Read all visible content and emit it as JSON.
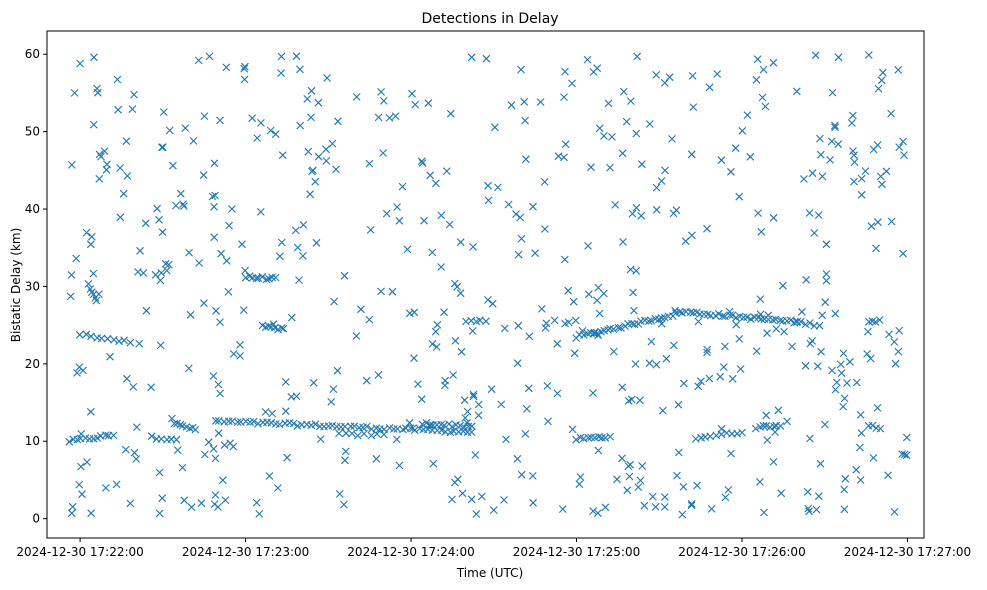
{
  "chart_data": {
    "type": "scatter",
    "title": "Detections in Delay",
    "xlabel": "Time (UTC)",
    "ylabel": "Bistatic Delay (km)",
    "marker": "x",
    "color": "#1f77b4",
    "grid": false,
    "x_axis_type": "datetime",
    "xlim": [
      "2024-12-30 17:21:48",
      "2024-12-30 17:27:06"
    ],
    "ylim": [
      -2.5,
      63
    ],
    "x_ticks": [
      "2024-12-30 17:22:00",
      "2024-12-30 17:23:00",
      "2024-12-30 17:24:00",
      "2024-12-30 17:25:00",
      "2024-12-30 17:26:00",
      "2024-12-30 17:27:00"
    ],
    "y_ticks": [
      0,
      10,
      20,
      30,
      40,
      50,
      60
    ],
    "tracks": [
      {
        "x_start": "2024-12-30 17:21:56",
        "x_end": "2024-12-30 17:22:12",
        "y_start": 10,
        "y_end": 10.8,
        "count": 12
      },
      {
        "x_start": "2024-12-30 17:22:00",
        "x_end": "2024-12-30 17:22:18",
        "y_start": 23.8,
        "y_end": 22.8,
        "count": 10
      },
      {
        "x_start": "2024-12-30 17:22:03",
        "x_end": "2024-12-30 17:22:06",
        "y_start": 30.2,
        "y_end": 28.2,
        "count": 6
      },
      {
        "x_start": "2024-12-30 17:22:26",
        "x_end": "2024-12-30 17:22:35",
        "y_start": 10.5,
        "y_end": 10.3,
        "count": 6
      },
      {
        "x_start": "2024-12-30 17:22:34",
        "x_end": "2024-12-30 17:22:42",
        "y_start": 12.3,
        "y_end": 11.5,
        "count": 8
      },
      {
        "x_start": "2024-12-30 17:22:49",
        "x_end": "2024-12-30 17:24:22",
        "y_start": 12.6,
        "y_end": 11.2,
        "count": 60
      },
      {
        "x_start": "2024-12-30 17:23:00",
        "x_end": "2024-12-30 17:23:11",
        "y_start": 31.2,
        "y_end": 31.0,
        "count": 10
      },
      {
        "x_start": "2024-12-30 17:23:06",
        "x_end": "2024-12-30 17:23:14",
        "y_start": 24.8,
        "y_end": 24.5,
        "count": 8
      },
      {
        "x_start": "2024-12-30 17:23:34",
        "x_end": "2024-12-30 17:23:50",
        "y_start": 10.9,
        "y_end": 10.8,
        "count": 8
      },
      {
        "x_start": "2024-12-30 17:24:04",
        "x_end": "2024-12-30 17:24:22",
        "y_start": 12.3,
        "y_end": 11.9,
        "count": 14
      },
      {
        "x_start": "2024-12-30 17:24:20",
        "x_end": "2024-12-30 17:24:27",
        "y_start": 25.6,
        "y_end": 25.4,
        "count": 5
      },
      {
        "x_start": "2024-12-30 17:25:00",
        "x_end": "2024-12-30 17:25:12",
        "y_start": 10.3,
        "y_end": 10.6,
        "count": 10
      },
      {
        "x_start": "2024-12-30 17:25:00",
        "x_end": "2024-12-30 17:25:36",
        "y_start": 23.5,
        "y_end": 26.4,
        "count": 30
      },
      {
        "x_start": "2024-12-30 17:25:36",
        "x_end": "2024-12-30 17:26:20",
        "y_start": 26.8,
        "y_end": 25.4,
        "count": 35
      },
      {
        "x_start": "2024-12-30 17:26:20",
        "x_end": "2024-12-30 17:26:28",
        "y_start": 25.4,
        "y_end": 25.0,
        "count": 6
      },
      {
        "x_start": "2024-12-30 17:25:43",
        "x_end": "2024-12-30 17:26:00",
        "y_start": 10.4,
        "y_end": 11.2,
        "count": 10
      },
      {
        "x_start": "2024-12-30 17:26:05",
        "x_end": "2024-12-30 17:26:14",
        "y_start": 11.8,
        "y_end": 12.1,
        "count": 8
      },
      {
        "x_start": "2024-12-30 17:26:46",
        "x_end": "2024-12-30 17:26:50",
        "y_start": 12.0,
        "y_end": 11.8,
        "count": 4
      },
      {
        "x_start": "2024-12-30 17:26:46",
        "x_end": "2024-12-30 17:26:50",
        "y_start": 25.6,
        "y_end": 25.5,
        "count": 4
      },
      {
        "x_start": "2024-12-30 17:26:58",
        "x_end": "2024-12-30 17:27:00",
        "y_start": 8.2,
        "y_end": 8.1,
        "count": 3
      }
    ],
    "clutter": {
      "x_range": [
        "2024-12-30 17:21:56",
        "2024-12-30 17:27:00"
      ],
      "y_range": [
        0.5,
        60
      ],
      "count": 560
    },
    "points": [
      {
        "x": "2024-12-30 17:21:57",
        "y": 0.7
      },
      {
        "x": "2024-12-30 17:22:04",
        "y": 0.7
      },
      {
        "x": "2024-12-30 17:22:05",
        "y": 59.6
      },
      {
        "x": "2024-12-30 17:22:00",
        "y": 58.8
      },
      {
        "x": "2024-12-30 17:21:57",
        "y": 45.7
      },
      {
        "x": "2024-12-30 17:21:58",
        "y": 55.0
      },
      {
        "x": "2024-12-30 17:22:43",
        "y": 59.2
      },
      {
        "x": "2024-12-30 17:22:53",
        "y": 58.3
      },
      {
        "x": "2024-12-30 17:23:13",
        "y": 59.7
      },
      {
        "x": "2024-12-30 17:22:44",
        "y": 2.0
      },
      {
        "x": "2024-12-30 17:22:50",
        "y": 1.5
      },
      {
        "x": "2024-12-30 17:24:22",
        "y": 59.6
      },
      {
        "x": "2024-12-30 17:24:22",
        "y": 2.5
      },
      {
        "x": "2024-12-30 17:24:30",
        "y": 1.1
      },
      {
        "x": "2024-12-30 17:25:04",
        "y": 59.3
      },
      {
        "x": "2024-12-30 17:25:22",
        "y": 59.7
      },
      {
        "x": "2024-12-30 17:25:32",
        "y": 1.5
      },
      {
        "x": "2024-12-30 17:25:32",
        "y": 2.8
      },
      {
        "x": "2024-12-30 17:26:08",
        "y": 0.8
      },
      {
        "x": "2024-12-30 17:26:35",
        "y": 59.6
      },
      {
        "x": "2024-12-30 17:26:24",
        "y": 1.3
      },
      {
        "x": "2024-12-30 17:26:46",
        "y": 59.9
      },
      {
        "x": "2024-12-30 17:26:57",
        "y": 48.0
      },
      {
        "x": "2024-12-30 17:26:57",
        "y": 24.3
      },
      {
        "x": "2024-12-30 17:26:53",
        "y": 5.6
      }
    ]
  }
}
